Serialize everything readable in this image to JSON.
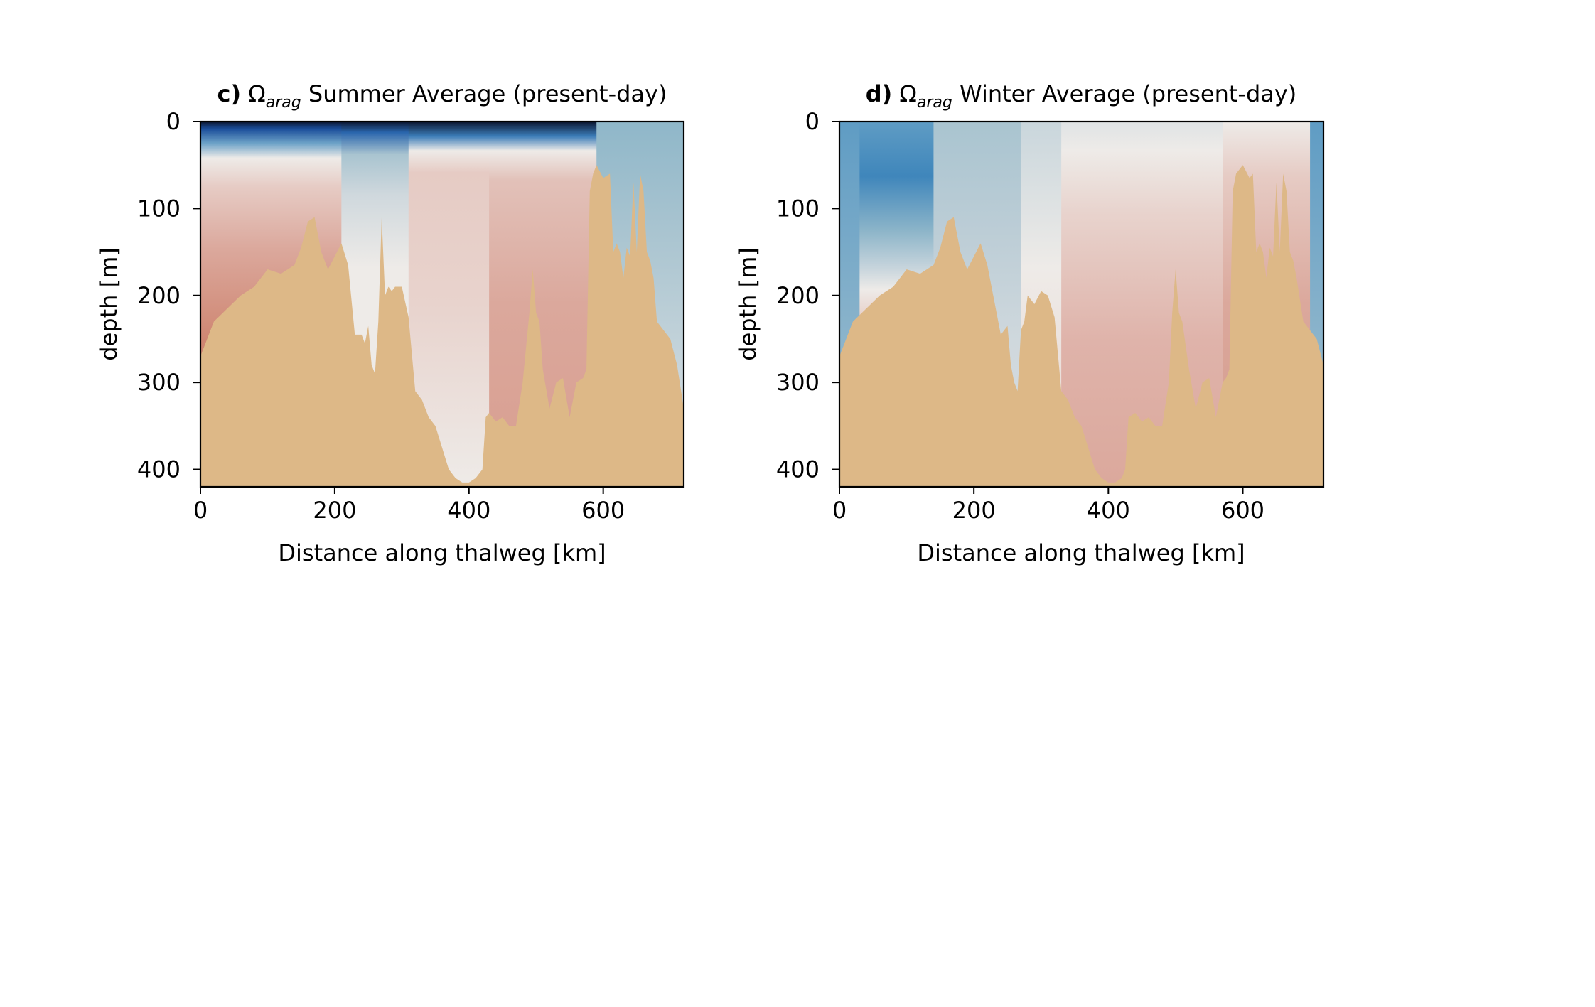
{
  "colors": {
    "background": "#ffffff",
    "seafloor": "#ddb887",
    "axis": "#000000",
    "deep_blue": "#0b1530",
    "mid_blue": "#2f7fc0",
    "light_blue": "#a9c4d0",
    "neutral": "#eeebe8",
    "light_red": "#e6cbc4",
    "mid_red": "#dba89c",
    "strong_red": "#cf8672"
  },
  "chart_data": [
    {
      "type": "heatmap",
      "panel_label": "c)",
      "title_symbol": "Ω",
      "title_subscript": "arag",
      "title_text": "Summer Average (present-day)",
      "xlabel": "Distance along thalweg [km]",
      "ylabel": "depth [m]",
      "xlim": [
        0,
        720
      ],
      "ylim": [
        420,
        0
      ],
      "xticks": [
        0,
        200,
        400,
        600
      ],
      "yticks": [
        0,
        100,
        200,
        300,
        400
      ],
      "grid": false,
      "colormap": "diverging blue-white-red, dark navy for lowest Ω values near surface",
      "bathymetry": {
        "x": [
          0,
          10,
          20,
          40,
          60,
          80,
          100,
          120,
          140,
          150,
          160,
          170,
          180,
          190,
          200,
          210,
          220,
          225,
          230,
          240,
          245,
          250,
          255,
          260,
          265,
          270,
          275,
          280,
          285,
          290,
          300,
          310,
          320,
          330,
          340,
          350,
          360,
          370,
          380,
          390,
          400,
          410,
          420,
          425,
          430,
          440,
          450,
          460,
          470,
          480,
          490,
          495,
          500,
          505,
          510,
          520,
          530,
          540,
          550,
          560,
          570,
          575,
          580,
          585,
          590,
          600,
          610,
          615,
          620,
          625,
          630,
          635,
          640,
          645,
          650,
          655,
          660,
          665,
          670,
          675,
          680,
          690,
          700,
          710,
          720
        ],
        "depth": [
          270,
          250,
          230,
          215,
          200,
          190,
          170,
          175,
          165,
          145,
          115,
          110,
          150,
          170,
          155,
          140,
          165,
          205,
          245,
          245,
          255,
          235,
          280,
          290,
          230,
          110,
          200,
          190,
          195,
          190,
          190,
          225,
          310,
          320,
          340,
          350,
          375,
          400,
          410,
          415,
          415,
          410,
          400,
          340,
          335,
          345,
          340,
          350,
          350,
          300,
          220,
          170,
          220,
          230,
          285,
          330,
          300,
          295,
          340,
          300,
          295,
          285,
          80,
          60,
          50,
          65,
          60,
          150,
          140,
          150,
          180,
          145,
          155,
          70,
          150,
          60,
          80,
          150,
          160,
          180,
          230,
          240,
          250,
          280,
          330
        ]
      },
      "features": [
        "Lowest Ω (dark navy) in top ~10 m from 0 to ~580 km",
        "Blue undersaturated-to-near-saturated waters 580–720 km",
        "Reddish supersaturated waters at depth, strongest near 0–60 km"
      ]
    },
    {
      "type": "heatmap",
      "panel_label": "d)",
      "title_symbol": "Ω",
      "title_subscript": "arag",
      "title_text": "Winter Average (present-day)",
      "xlabel": "Distance along thalweg [km]",
      "ylabel": "depth [m]",
      "xlim": [
        0,
        720
      ],
      "ylim": [
        420,
        0
      ],
      "xticks": [
        0,
        200,
        400,
        600
      ],
      "yticks": [
        0,
        100,
        200,
        300,
        400
      ],
      "grid": false,
      "colormap": "diverging blue-white-red",
      "bathymetry": {
        "x": [
          0,
          10,
          20,
          40,
          60,
          80,
          100,
          120,
          140,
          150,
          160,
          170,
          180,
          190,
          200,
          210,
          220,
          230,
          240,
          250,
          255,
          260,
          265,
          270,
          275,
          280,
          290,
          300,
          310,
          320,
          330,
          340,
          350,
          360,
          370,
          380,
          390,
          400,
          410,
          420,
          425,
          430,
          440,
          450,
          460,
          470,
          480,
          490,
          495,
          500,
          505,
          510,
          520,
          530,
          540,
          550,
          560,
          570,
          575,
          580,
          585,
          590,
          600,
          610,
          615,
          620,
          625,
          630,
          635,
          640,
          645,
          650,
          655,
          660,
          665,
          670,
          675,
          680,
          690,
          700,
          710,
          720
        ],
        "depth": [
          270,
          250,
          230,
          215,
          200,
          190,
          170,
          175,
          165,
          145,
          115,
          110,
          150,
          170,
          155,
          140,
          165,
          205,
          245,
          235,
          280,
          300,
          310,
          240,
          230,
          200,
          210,
          195,
          200,
          225,
          310,
          320,
          340,
          350,
          375,
          400,
          410,
          415,
          415,
          410,
          400,
          340,
          335,
          345,
          340,
          350,
          350,
          300,
          220,
          170,
          220,
          230,
          285,
          330,
          300,
          295,
          340,
          300,
          295,
          285,
          80,
          60,
          50,
          65,
          60,
          150,
          140,
          150,
          180,
          145,
          155,
          70,
          150,
          60,
          80,
          150,
          160,
          180,
          230,
          240,
          250,
          280
        ]
      },
      "features": [
        "Blue waters in upper ~200 m near 0–60 km",
        "Near-neutral (white/grey) mid-section 100–300 km",
        "Reddish waters at depth 350–600 km"
      ]
    }
  ]
}
